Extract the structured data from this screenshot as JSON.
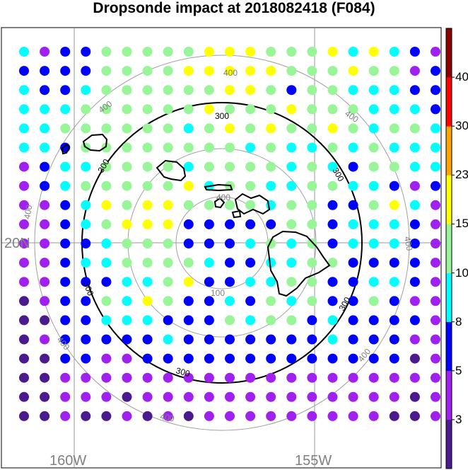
{
  "title": "Dropsonde impact at 2018082418 (F084)",
  "map": {
    "lat_labels": [
      "20N"
    ],
    "lon_labels": [
      "160W",
      "155W"
    ],
    "ring_values": [
      "100",
      "200",
      "300",
      "400"
    ],
    "ring_labels_grey": [
      "100",
      "400",
      "400",
      "400",
      "400",
      "400",
      "400",
      "400",
      "400",
      "400"
    ],
    "ring_labels_black": [
      "300",
      "300",
      "300",
      "300",
      "300",
      "300"
    ]
  },
  "colorbar": {
    "levels": [
      3,
      5,
      8,
      10,
      15,
      23,
      30,
      40
    ],
    "labels": [
      "3",
      "5",
      "8",
      "10",
      "15",
      "23",
      "30",
      "40"
    ],
    "colors": [
      "#4a1a8e",
      "#a020f0",
      "#0000ff",
      "#00ffff",
      "#98f598",
      "#ffff00",
      "#ffa500",
      "#ff0000",
      "#8b0000"
    ]
  },
  "chart_data": {
    "type": "heatmap",
    "title": "Dropsonde impact at 2018082418 (F084)",
    "rows": 20,
    "cols": 21,
    "class_legend": [
      "<3",
      "3-5",
      "5-8",
      "8-10",
      "10-15",
      "15-23",
      "23-30",
      "30-40",
      ">40"
    ],
    "grid": [
      "312244444555444535321",
      "222244445555544454412",
      "322344444455424433322",
      "333444444544454443332",
      "334444443454544543443",
      "332444444443433434333",
      "123344443444434324433",
      "123444445344334433212",
      "112354554444344224531",
      "112345552222244233321",
      "112234442223434233321",
      "112334444322334422221",
      "112223345223344223321",
      "012243542232434224211",
      "002233322243442322221",
      "012222232222222322211",
      "002211222222222222201",
      "001111111111111111111",
      "001110111111111111101",
      "001001010111111111001"
    ]
  }
}
